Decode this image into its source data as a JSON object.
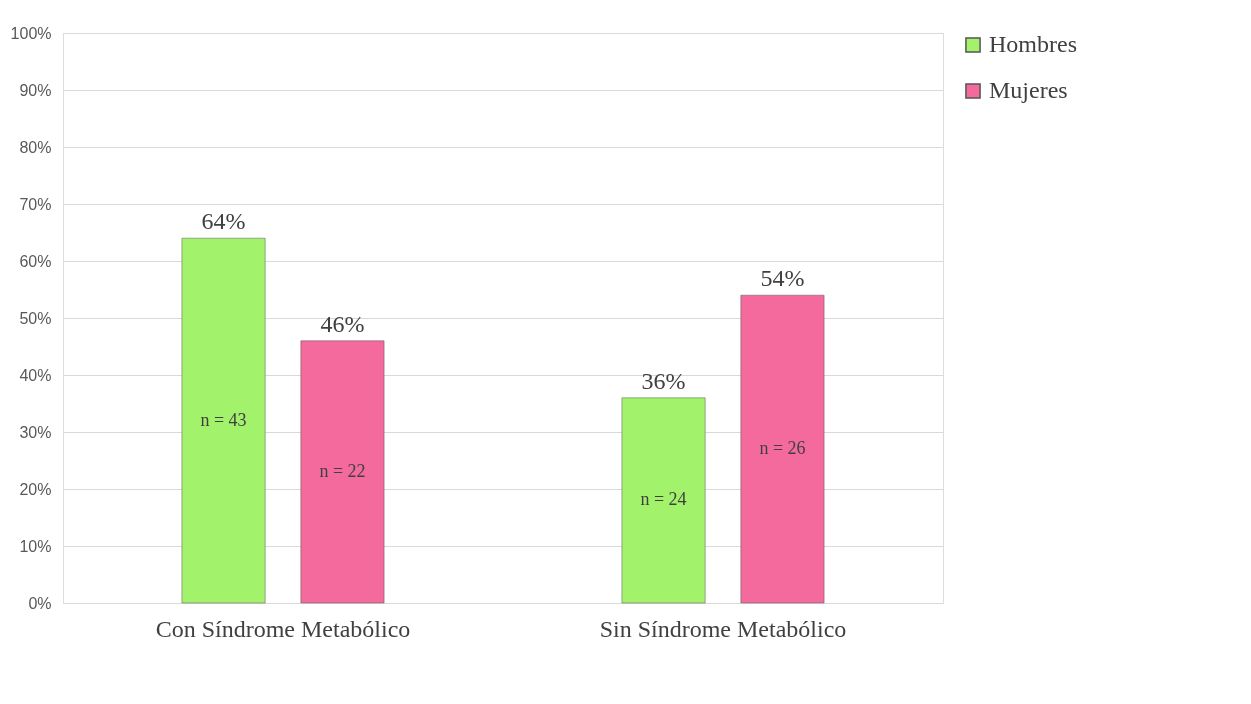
{
  "chart_data": {
    "type": "bar",
    "categories": [
      "Con Síndrome Metabólico",
      "Sin Síndrome Metabólico"
    ],
    "series": [
      {
        "name": "Hombres",
        "color": "#a3f26b",
        "values": [
          64,
          36
        ],
        "value_labels": [
          "64%",
          "36%"
        ]
      },
      {
        "name": "Mujeres",
        "color": "#f56a9c",
        "values": [
          46,
          54
        ],
        "value_labels": [
          "46%",
          "54%"
        ]
      }
    ],
    "ylim": [
      0,
      100
    ],
    "yticks": [
      {
        "value": 0,
        "label": "0%"
      },
      {
        "value": 10,
        "label": "10%"
      },
      {
        "value": 20,
        "label": "20%"
      },
      {
        "value": 30,
        "label": "30%"
      },
      {
        "value": 40,
        "label": "40%"
      },
      {
        "value": 50,
        "label": "50%"
      },
      {
        "value": 60,
        "label": "60%"
      },
      {
        "value": 70,
        "label": "70%"
      },
      {
        "value": 80,
        "label": "80%"
      },
      {
        "value": 90,
        "label": "90%"
      },
      {
        "value": 100,
        "label": "100%"
      }
    ],
    "annotations": [
      "n = 43",
      "n = 22",
      "n = 24",
      "n = 26"
    ],
    "grid": "y",
    "legend": "right"
  }
}
